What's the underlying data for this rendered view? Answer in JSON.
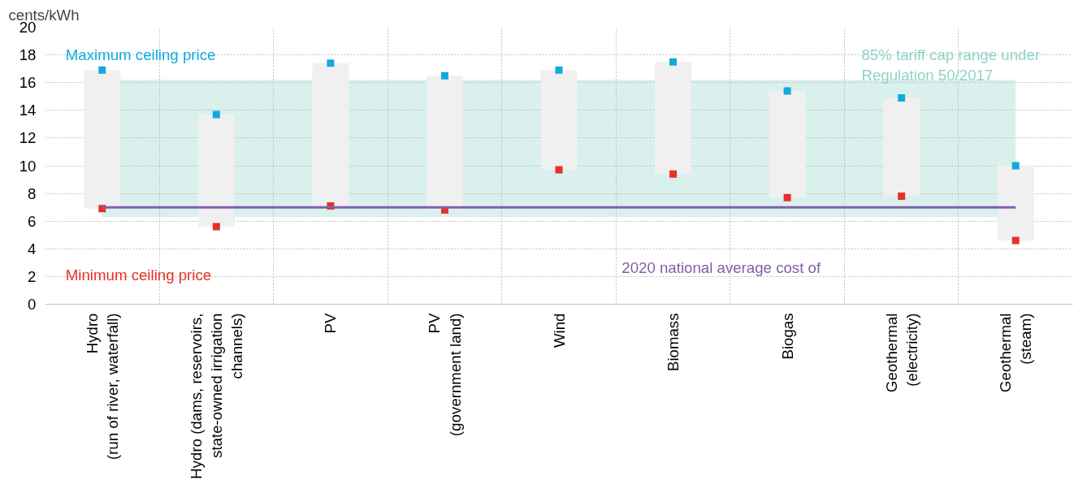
{
  "chart_data": {
    "type": "bar",
    "ylabel": "cents/kWh",
    "categories": [
      "Hydro\n(run of river, waterfall)",
      "Hydro (dams, reservoirs,\nstate-owned irrigation\nchannels)",
      "PV",
      "PV\n(government land)",
      "Wind",
      "Biomass",
      "Biogas",
      "Geothermal\n(electricity)",
      "Geothermal\n(steam)"
    ],
    "series": [
      {
        "color": "#f0f0f0",
        "base": [
          6.9,
          5.6,
          7.1,
          6.8,
          9.7,
          9.4,
          7.7,
          7.8,
          4.6
        ],
        "values": [
          10.0,
          8.1,
          10.3,
          9.7,
          7.2,
          8.1,
          7.7,
          7.1,
          5.4
        ]
      },
      {
        "type": "scatter",
        "name": "Maximum ceiling price",
        "color": "#12a9e0",
        "values": [
          16.9,
          13.7,
          17.4,
          16.5,
          16.9,
          17.5,
          15.4,
          14.9,
          10.0
        ]
      },
      {
        "type": "scatter",
        "name": "Minimum ceiling price",
        "color": "#e8302a",
        "values": [
          6.9,
          5.6,
          7.1,
          6.8,
          9.7,
          9.4,
          7.7,
          7.8,
          4.6
        ]
      }
    ],
    "ylim": [
      0,
      20
    ],
    "yticks": [
      0,
      2,
      4,
      6,
      8,
      10,
      12,
      14,
      16,
      18,
      20
    ],
    "bands": [
      {
        "axis": "y",
        "from": 6.3,
        "to": 16.2,
        "label": "85% tariff cap range under\nRegulation 50/2017",
        "color": "#d9f0ed"
      }
    ],
    "ref_lines": [
      {
        "axis": "y",
        "value": 7,
        "label": "2020 national average cost of",
        "color": "#7f5fa8",
        "line_style": "solid"
      }
    ],
    "grid": true,
    "legend": false
  }
}
